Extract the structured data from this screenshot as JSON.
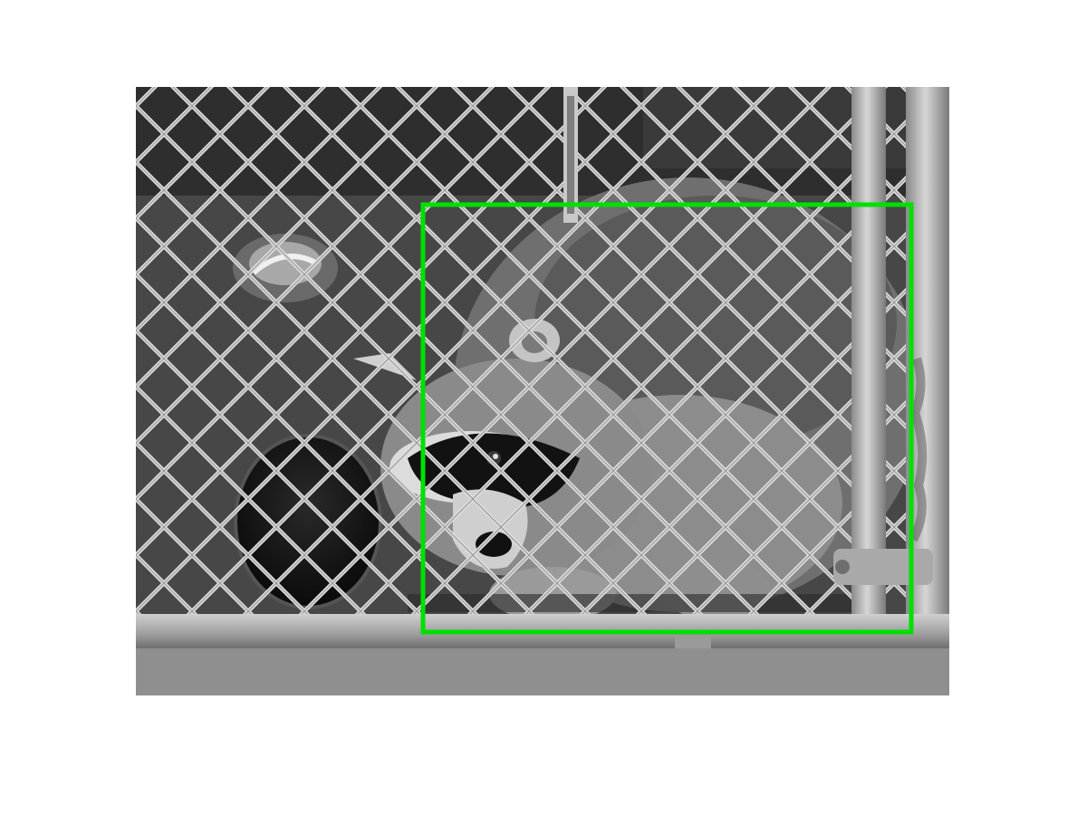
{
  "image": {
    "subject": "raccoon-icon",
    "palette": {
      "background": "#ffffff",
      "shadow": "#1e1e1e",
      "floor": "#4a4a4a",
      "fur_dark": "#5a5a5a",
      "fur_light": "#a9a9a9",
      "mask": "#0f0f0f",
      "wire": "#d9d9d9",
      "pipe": "#b8b8b8"
    }
  },
  "annotation": {
    "label": "",
    "color": "#00e000"
  }
}
